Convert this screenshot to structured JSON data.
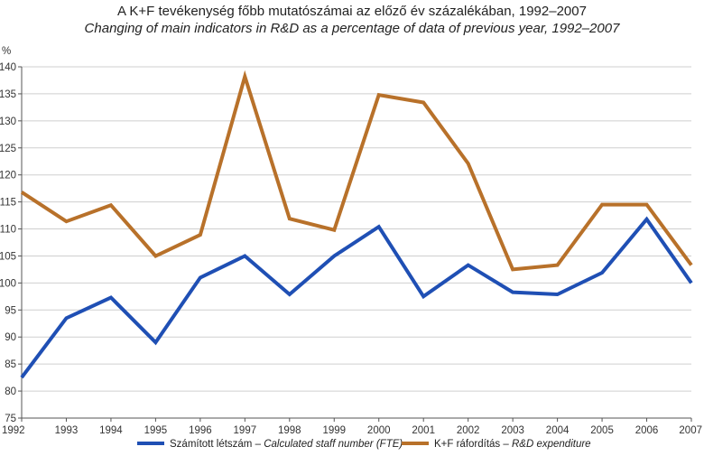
{
  "chart_data": {
    "type": "line",
    "title": "A K+F tevékenység főbb mutatószámai az előző év százalékában, 1992–2007",
    "subtitle": "Changing of main indicators in R&D as a percentage of data of previous year, 1992–2007",
    "ylabel": "%",
    "xlabel": "",
    "x": [
      1992,
      1993,
      1994,
      1995,
      1996,
      1997,
      1998,
      1999,
      2000,
      2001,
      2002,
      2003,
      2004,
      2005,
      2006,
      2007
    ],
    "ylim": [
      75,
      140
    ],
    "yticks": [
      75,
      80,
      85,
      90,
      95,
      100,
      105,
      110,
      115,
      120,
      125,
      130,
      135,
      140
    ],
    "grid": "horizontal",
    "legend_position": "bottom",
    "series": [
      {
        "name_hu": "Számított létszám",
        "name_en": "Calculated staff number (FTE)",
        "color": "#1f4fb4",
        "values": [
          82.5,
          93.5,
          97.3,
          89.0,
          101.0,
          105.0,
          97.9,
          105.0,
          110.4,
          97.5,
          103.3,
          98.3,
          97.9,
          101.9,
          111.8,
          100.0
        ]
      },
      {
        "name_hu": "K+F ráfordítás",
        "name_en": "R&D expenditure",
        "color": "#b8712a",
        "values": [
          116.8,
          111.4,
          114.4,
          105.0,
          108.9,
          138.2,
          111.9,
          109.8,
          134.8,
          133.4,
          122.1,
          102.5,
          103.3,
          114.5,
          114.5,
          103.3
        ]
      }
    ]
  },
  "legend_separator": " – "
}
